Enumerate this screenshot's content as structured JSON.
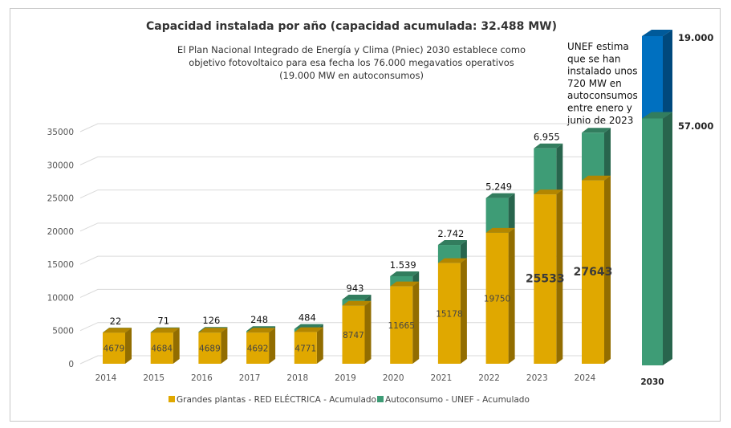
{
  "chart_data": {
    "type": "bar",
    "stacked": true,
    "title": "Capacidad instalada por año (capacidad acumulada: 32.488 MW)",
    "subtitle_lines": [
      "El Plan Nacional Integrado de Energía y Clima (Pniec) 2030 establece como",
      "objetivo fotovoltaico para esa fecha los 76.000 megavatios operativos",
      "(19.000 MW en autoconsumos)"
    ],
    "annotation_lines": [
      "UNEF estima",
      "que se han",
      "instalado unos",
      "720 MW en",
      "autoconsumos",
      "entre enero y",
      "junio de 2023"
    ],
    "categories": [
      "2014",
      "2015",
      "2016",
      "2017",
      "2018",
      "2019",
      "2020",
      "2021",
      "2022",
      "2023",
      "2024"
    ],
    "ylim": [
      0,
      35000
    ],
    "yticks": [
      "0",
      "5000",
      "10000",
      "15000",
      "20000",
      "25000",
      "30000",
      "35000"
    ],
    "grid": true,
    "legend_position": "bottom",
    "series": [
      {
        "name": "Grandes plantas - RED ELÉCTRICA - Acumulado",
        "color": "#E0A800",
        "values": [
          4679,
          4684,
          4689,
          4692,
          4771,
          8747,
          11665,
          15178,
          19750,
          25533,
          27643
        ],
        "labels": [
          "4679",
          "4684",
          "4689",
          "4692",
          "4771",
          "8747",
          "11665",
          "15178",
          "19750",
          "25533",
          "27643"
        ]
      },
      {
        "name": "Autoconsumo - UNEF - Acumulado",
        "color": "#3E9C76",
        "values": [
          22,
          71,
          126,
          248,
          484,
          943,
          1539,
          2742,
          5249,
          6955,
          7200
        ],
        "labels": [
          "22",
          "71",
          "126",
          "248",
          "484",
          "943",
          "1.539",
          "2.742",
          "5.249",
          "6.955",
          ""
        ]
      }
    ],
    "target_2030": {
      "category": "2030",
      "grandes_plantas": 57000,
      "grandes_label": "57.000",
      "grandes_color": "#3E9C76",
      "autoconsumo": 19000,
      "autoconsumo_label": "19.000",
      "autoconsumo_color": "#0070C0"
    }
  }
}
